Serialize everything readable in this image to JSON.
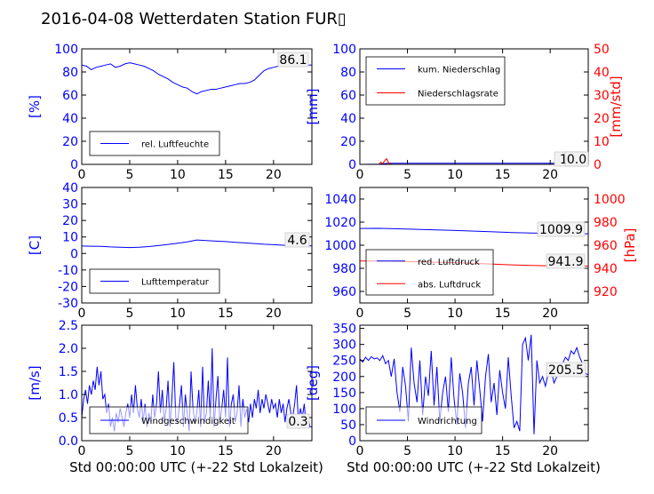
{
  "title": "2016-04-08 Wetterdaten Station FUR▯",
  "xlabel": "Std 00:00:00 UTC (+-22 Std Lokalzeit)",
  "chart_data": [
    {
      "type": "line",
      "ylabel": "[%]",
      "xlim": [
        0,
        24
      ],
      "xticks": [
        0,
        5,
        10,
        15,
        20
      ],
      "ylim": [
        0,
        100
      ],
      "yticks": [
        0,
        20,
        40,
        60,
        80,
        100
      ],
      "latest": "86.1",
      "legend_position": "lower-left",
      "series": [
        {
          "name": "rel. Luftfeuchte",
          "color": "#0000ff",
          "x": [
            0,
            0.5,
            1,
            1.5,
            2,
            2.5,
            3,
            3.5,
            4,
            4.5,
            5,
            5.5,
            6,
            6.5,
            7,
            7.5,
            8,
            8.5,
            9,
            9.5,
            10,
            10.5,
            11,
            11.5,
            12,
            12.5,
            13,
            13.5,
            14,
            14.5,
            15,
            15.5,
            16,
            16.5,
            17,
            17.5,
            18,
            18.5,
            19,
            19.5,
            20,
            20.5,
            21,
            21.5,
            22,
            22.5,
            23,
            23.5,
            24
          ],
          "y": [
            86,
            85,
            82,
            84,
            85,
            86,
            87,
            84,
            85,
            87,
            88,
            87,
            86,
            85,
            83,
            81,
            78,
            76,
            74,
            71,
            69,
            67,
            66,
            63,
            61,
            63,
            64,
            65,
            65,
            66,
            67,
            68,
            69,
            70,
            70,
            71,
            73,
            77,
            81,
            83,
            84,
            85,
            86,
            86,
            86,
            85,
            85,
            86,
            86
          ]
        }
      ]
    },
    {
      "type": "line",
      "ylabel": "[mm]",
      "ylabel_right": "[mm/std]",
      "xlim": [
        0,
        24
      ],
      "xticks": [
        0,
        5,
        10,
        15,
        20
      ],
      "ylim": [
        0,
        100
      ],
      "yticks": [
        0,
        20,
        40,
        60,
        80,
        100
      ],
      "ylim_right": [
        0,
        50
      ],
      "yticks_right": [
        0,
        10,
        20,
        30,
        40,
        50
      ],
      "latest": "1.0",
      "latest_right": "0.0",
      "legend_position": "upper-left",
      "series": [
        {
          "name": "kum. Niederschlag",
          "color": "#0000ff",
          "axis": "left",
          "x": [
            0,
            2,
            2.5,
            3,
            24
          ],
          "y": [
            0,
            0.2,
            0.6,
            1.0,
            1.0
          ]
        },
        {
          "name": "Niederschlagsrate",
          "color": "#ff0000",
          "axis": "right",
          "x": [
            0,
            2,
            2.2,
            2.4,
            2.6,
            2.8,
            3,
            3.2,
            3.5,
            24
          ],
          "y": [
            0,
            0,
            1,
            0.3,
            1.5,
            2.5,
            0.8,
            0.2,
            0,
            0
          ]
        }
      ]
    },
    {
      "type": "line",
      "ylabel": "[C]",
      "xlim": [
        0,
        24
      ],
      "xticks": [
        0,
        5,
        10,
        15,
        20
      ],
      "ylim": [
        -30,
        40
      ],
      "yticks": [
        -30,
        -20,
        -10,
        0,
        10,
        20,
        30,
        40
      ],
      "latest": "4.6",
      "legend_position": "lower-left",
      "series": [
        {
          "name": "Lufttemperatur",
          "color": "#0000ff",
          "x": [
            0,
            1,
            2,
            3,
            4,
            5,
            6,
            7,
            8,
            9,
            10,
            11,
            12,
            13,
            14,
            15,
            16,
            17,
            18,
            19,
            20,
            21,
            22,
            23,
            24
          ],
          "y": [
            4.5,
            4.4,
            4.3,
            4.0,
            3.8,
            3.6,
            3.8,
            4.2,
            4.8,
            5.5,
            6.2,
            7.0,
            8.2,
            7.8,
            7.5,
            7.2,
            6.8,
            6.4,
            6.0,
            5.6,
            5.3,
            5.0,
            4.8,
            4.6,
            4.6
          ]
        }
      ]
    },
    {
      "type": "line",
      "ylabel": "[hPa]",
      "xlim": [
        0,
        24
      ],
      "xticks": [
        0,
        5,
        10,
        15,
        20
      ],
      "ylim": [
        950,
        1050
      ],
      "yticks": [
        960,
        980,
        1000,
        1020,
        1040
      ],
      "ylim_right": [
        910,
        1010
      ],
      "yticks_right": [
        920,
        940,
        960,
        980,
        1000
      ],
      "latest": "1009.9",
      "latest_right": "941.9",
      "legend_position": "lower-left",
      "series": [
        {
          "name": "red. Luftdruck",
          "color": "#0000ff",
          "axis": "left",
          "x": [
            0,
            2,
            4,
            6,
            8,
            10,
            12,
            14,
            16,
            18,
            20,
            22,
            24
          ],
          "y": [
            1014.5,
            1014.6,
            1014.2,
            1013.8,
            1013.3,
            1012.8,
            1012.2,
            1011.6,
            1011.0,
            1010.6,
            1010.2,
            1010.0,
            1009.9
          ]
        },
        {
          "name": "abs. Luftdruck",
          "color": "#ff0000",
          "axis": "right",
          "x": [
            0,
            2,
            4,
            6,
            8,
            10,
            12,
            14,
            16,
            18,
            20,
            22,
            24
          ],
          "y": [
            946.3,
            946.4,
            946.1,
            945.7,
            945.3,
            944.9,
            944.3,
            943.7,
            943.0,
            942.5,
            942.1,
            941.9,
            941.9
          ]
        }
      ]
    },
    {
      "type": "line",
      "ylabel": "[m/s]",
      "xlim": [
        0,
        24
      ],
      "xticks": [
        0,
        5,
        10,
        15,
        20
      ],
      "ylim": [
        0,
        2.5
      ],
      "yticks": [
        0.0,
        0.5,
        1.0,
        1.5,
        2.0,
        2.5
      ],
      "latest": "0.3",
      "legend_position": "lower-left",
      "series": [
        {
          "name": "Windgeschwindigkeit",
          "color": "#0000ff",
          "x": [
            0,
            0.2,
            0.4,
            0.6,
            0.8,
            1,
            1.2,
            1.4,
            1.6,
            1.8,
            2,
            2.2,
            2.4,
            2.6,
            2.8,
            3,
            3.2,
            3.4,
            3.6,
            3.8,
            4,
            4.2,
            4.4,
            4.6,
            4.8,
            5,
            5.2,
            5.4,
            5.6,
            5.8,
            6,
            6.2,
            6.4,
            6.6,
            6.8,
            7,
            7.2,
            7.4,
            7.6,
            7.8,
            8,
            8.2,
            8.4,
            8.6,
            8.8,
            9,
            9.2,
            9.4,
            9.6,
            9.8,
            10,
            10.2,
            10.4,
            10.6,
            10.8,
            11,
            11.2,
            11.4,
            11.6,
            11.8,
            12,
            12.2,
            12.4,
            12.6,
            12.8,
            13,
            13.2,
            13.4,
            13.6,
            13.8,
            14,
            14.2,
            14.4,
            14.6,
            14.8,
            15,
            15.2,
            15.4,
            15.6,
            15.8,
            16,
            16.2,
            16.4,
            16.6,
            16.8,
            17,
            17.2,
            17.4,
            17.6,
            17.8,
            18,
            18.2,
            18.4,
            18.6,
            18.8,
            19,
            19.2,
            19.4,
            19.6,
            19.8,
            20,
            20.2,
            20.4,
            20.6,
            20.8,
            21,
            21.2,
            21.4,
            21.6,
            21.8,
            22,
            22.2,
            22.4,
            22.6,
            22.8,
            23,
            23.2,
            23.4,
            23.6,
            23.8,
            24
          ],
          "y": [
            0.5,
            0.9,
            1.1,
            0.8,
            1.2,
            1.0,
            1.3,
            1.1,
            1.6,
            1.2,
            1.5,
            0.9,
            1.0,
            0.6,
            0.8,
            0.3,
            0.5,
            0.2,
            0.6,
            0.4,
            0.7,
            0.5,
            0.3,
            0.6,
            0.8,
            0.5,
            1.0,
            0.6,
            1.2,
            0.7,
            0.5,
            0.9,
            0.4,
            0.8,
            0.3,
            0.6,
            0.4,
            1.0,
            0.5,
            0.8,
            1.5,
            0.6,
            1.1,
            0.4,
            0.7,
            1.3,
            0.3,
            0.9,
            1.7,
            0.5,
            0.4,
            0.8,
            1.2,
            0.3,
            1.0,
            0.6,
            0.2,
            1.5,
            0.7,
            0.4,
            0.6,
            1.1,
            0.3,
            1.6,
            0.4,
            0.6,
            1.3,
            0.5,
            2.0,
            0.3,
            0.9,
            1.4,
            0.4,
            0.7,
            1.1,
            0.5,
            1.8,
            0.3,
            0.8,
            1.0,
            0.4,
            0.6,
            1.2,
            0.3,
            0.9,
            0.5,
            0.7,
            0.4,
            0.8,
            0.5,
            0.9,
            0.7,
            1.1,
            0.6,
            0.9,
            0.7,
            1.0,
            0.8,
            0.6,
            0.9,
            0.7,
            0.8,
            0.5,
            0.9,
            0.6,
            0.8,
            0.4,
            0.7,
            0.9,
            0.6,
            0.5,
            0.8,
            1.2,
            0.4,
            0.7,
            0.5,
            0.8,
            0.3,
            0.5,
            0.3,
            0.3
          ]
        }
      ]
    },
    {
      "type": "line",
      "ylabel": "[deg]",
      "xlim": [
        0,
        24
      ],
      "xticks": [
        0,
        5,
        10,
        15,
        20
      ],
      "ylim": [
        0,
        360
      ],
      "yticks": [
        0,
        50,
        100,
        150,
        200,
        250,
        300,
        350
      ],
      "latest": "205.5",
      "legend_position": "lower-left",
      "series": [
        {
          "name": "Windrichtung",
          "color": "#0000ff",
          "x": [
            0,
            0.3,
            0.6,
            0.9,
            1.2,
            1.5,
            1.8,
            2.1,
            2.4,
            2.7,
            3.0,
            3.3,
            3.6,
            3.9,
            4.2,
            4.5,
            4.8,
            5.1,
            5.4,
            5.7,
            6.0,
            6.3,
            6.6,
            6.9,
            7.2,
            7.5,
            7.8,
            8.1,
            8.4,
            8.7,
            9.0,
            9.3,
            9.6,
            9.9,
            10.2,
            10.5,
            10.8,
            11.1,
            11.4,
            11.7,
            12.0,
            12.3,
            12.6,
            12.9,
            13.2,
            13.5,
            13.8,
            14.1,
            14.4,
            14.7,
            15.0,
            15.3,
            15.6,
            15.9,
            16.2,
            16.5,
            16.8,
            17.1,
            17.4,
            17.7,
            18.0,
            18.3,
            18.6,
            18.9,
            19.2,
            19.5,
            19.8,
            20.1,
            20.4,
            20.7,
            21.0,
            21.3,
            21.6,
            21.9,
            22.2,
            22.5,
            22.8,
            23.1,
            23.4,
            23.7,
            24.0
          ],
          "y": [
            255,
            245,
            260,
            250,
            262,
            255,
            258,
            250,
            265,
            240,
            250,
            200,
            255,
            150,
            90,
            230,
            170,
            60,
            290,
            180,
            120,
            250,
            80,
            200,
            140,
            280,
            110,
            230,
            60,
            150,
            200,
            90,
            260,
            130,
            50,
            210,
            150,
            40,
            180,
            230,
            110,
            250,
            160,
            60,
            200,
            270,
            120,
            180,
            80,
            220,
            150,
            100,
            260,
            140,
            40,
            60,
            30,
            300,
            320,
            250,
            330,
            20,
            250,
            180,
            200,
            170,
            210,
            220,
            180,
            200,
            230,
            240,
            260,
            250,
            280,
            270,
            290,
            260,
            240,
            210,
            205
          ]
        }
      ]
    }
  ]
}
